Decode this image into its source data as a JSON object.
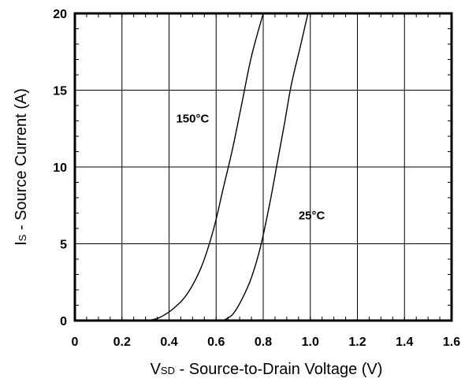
{
  "chart_data": {
    "type": "line",
    "xlabel_main": "V",
    "xlabel_sub": "SD",
    "xlabel_rest": " - Source-to-Drain Voltage (V)",
    "ylabel_main": "I",
    "ylabel_sub": "S",
    "ylabel_rest": " - Source Current (A)",
    "xlim": [
      0,
      1.6
    ],
    "ylim": [
      0,
      20
    ],
    "x_ticks": [
      0,
      0.2,
      0.4,
      0.6,
      0.8,
      1.0,
      1.2,
      1.4,
      1.6
    ],
    "x_tick_labels": [
      "0",
      "0.2",
      "0.4",
      "0.6",
      "0.8",
      "1.0",
      "1.2",
      "1.4",
      "1.6"
    ],
    "y_ticks": [
      0,
      5,
      10,
      15,
      20
    ],
    "y_tick_labels": [
      "0",
      "5",
      "10",
      "15",
      "20"
    ],
    "grid": true,
    "series": [
      {
        "name": "150°C",
        "points": [
          [
            0.31,
            0
          ],
          [
            0.36,
            0.2
          ],
          [
            0.42,
            0.8
          ],
          [
            0.48,
            1.8
          ],
          [
            0.54,
            3.6
          ],
          [
            0.59,
            6.0
          ],
          [
            0.63,
            8.6
          ],
          [
            0.67,
            11.2
          ],
          [
            0.71,
            14.2
          ],
          [
            0.75,
            17.2
          ],
          [
            0.8,
            20
          ]
        ]
      },
      {
        "name": "25°C",
        "points": [
          [
            0.63,
            0
          ],
          [
            0.67,
            0.4
          ],
          [
            0.71,
            1.4
          ],
          [
            0.75,
            2.8
          ],
          [
            0.79,
            4.9
          ],
          [
            0.83,
            7.8
          ],
          [
            0.86,
            10.3
          ],
          [
            0.89,
            12.8
          ],
          [
            0.92,
            15.4
          ],
          [
            0.96,
            18.0
          ],
          [
            0.99,
            20
          ]
        ]
      }
    ],
    "annotations": [
      {
        "text": "150°C",
        "x": 0.43,
        "y": 12.9
      },
      {
        "text": "25°C",
        "x": 0.95,
        "y": 6.6
      }
    ]
  }
}
